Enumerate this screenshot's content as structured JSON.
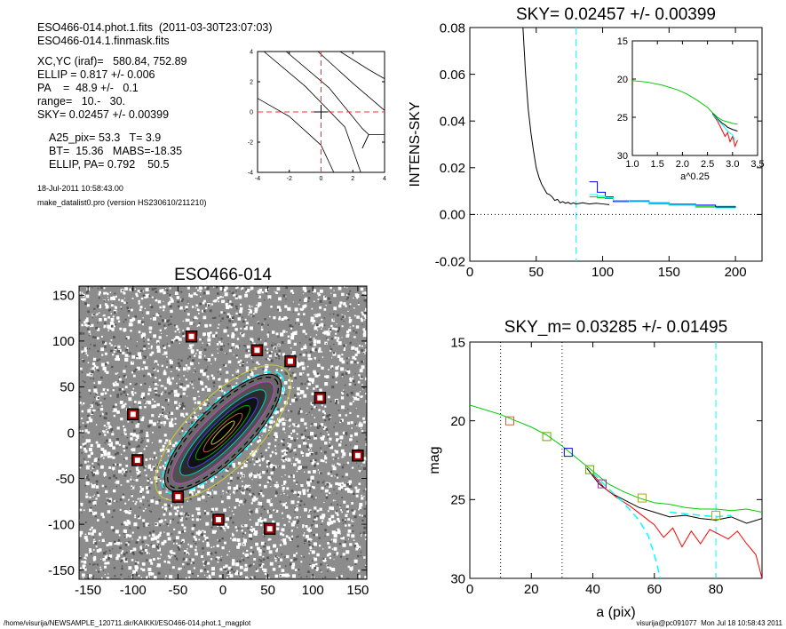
{
  "header": {
    "lines": [
      "ESO466-014.phot.1.fits  (2011-03-30T23:07:03)",
      "ESO466-014.1.finmask.fits",
      "XC,YC (iraf)=   580.84, 752.89",
      "ELLIP = 0.817 +/- 0.006",
      "PA    =  48.9 +/-   0.1",
      "range=   10.-   30.",
      "SKY= 0.02457 +/- 0.00399",
      "A25_pix= 53.3   T= 3.9",
      "BT=  15.36   MABS=-18.35",
      "ELLIP, PA= 0.792    50.5"
    ],
    "date_line": "18-Jul-2011 10:58:43.00",
    "program_line": "make_datalist0.pro (version HS230610/211210)"
  },
  "footer": {
    "path": "/home/visurija/NEWSAMPLE_120711.dir/KAIKKI/ESO466-014.phot.1_magplot",
    "user_stamp": "visurija@pc091077  Mon Jul 18 10:58:43 2011"
  },
  "chart_data": [
    {
      "id": "contour",
      "type": "line",
      "xlim": [
        -4,
        4
      ],
      "ylim": [
        -4,
        4
      ],
      "xticks": [
        "-4",
        "-2",
        "0",
        "2",
        "4"
      ],
      "yticks": [
        "-4",
        "-2",
        "0",
        "2",
        "4"
      ],
      "series": [
        {
          "x": [
            -4.0,
            -2.0,
            0.0,
            0.8
          ],
          "y": [
            0.9,
            -0.3,
            -2.2,
            -4.0
          ]
        },
        {
          "x": [
            -3.6,
            -1.0,
            1.5,
            2.5
          ],
          "y": [
            4.0,
            1.7,
            -1.0,
            -4.0
          ]
        },
        {
          "x": [
            -2.2,
            0.5,
            2.6,
            3.0,
            2.6
          ],
          "y": [
            4.0,
            1.6,
            -1.1,
            -1.5,
            -2.4
          ]
        },
        {
          "x": [
            2.6,
            3.0,
            4.0
          ],
          "y": [
            -2.4,
            -1.5,
            -1.5
          ]
        },
        {
          "x": [
            -0.2,
            2.0,
            4.0
          ],
          "y": [
            4.0,
            1.9,
            0.1
          ]
        },
        {
          "x": [
            1.2,
            3.0,
            4.0
          ],
          "y": [
            4.0,
            2.8,
            2.2
          ]
        }
      ],
      "markers": {
        "center": [
          0,
          0
        ],
        "crosshair": true
      }
    },
    {
      "id": "sky",
      "type": "line",
      "title": "SKY= 0.02457 +/- 0.00399",
      "xlabel": "",
      "ylabel": "INTENS-SKY",
      "xlim": [
        0,
        220
      ],
      "ylim": [
        -0.02,
        0.08
      ],
      "xticks": [
        0,
        50,
        100,
        150,
        200
      ],
      "yticks": [
        -0.02,
        0.0,
        0.02,
        0.04,
        0.06,
        0.08
      ],
      "ytick_labels": [
        "-0.02",
        "0.00",
        "0.02",
        "0.04",
        "0.06",
        "0.08"
      ],
      "vline_x": 80,
      "hline_y": 0.0,
      "series": [
        {
          "color": "#000000",
          "x": [
            40,
            42,
            44,
            46,
            48,
            50,
            52,
            54,
            56,
            58,
            60,
            62,
            64,
            66,
            68,
            70,
            72,
            74,
            76,
            78,
            80,
            85,
            90,
            95,
            100,
            105
          ],
          "y": [
            0.08,
            0.06,
            0.045,
            0.035,
            0.027,
            0.02,
            0.016,
            0.013,
            0.011,
            0.009,
            0.0085,
            0.0075,
            0.006,
            0.0065,
            0.005,
            0.0055,
            0.0048,
            0.0052,
            0.0045,
            0.005,
            0.0045,
            0.005,
            0.0045,
            0.0048,
            0.0045,
            0.0042
          ]
        },
        {
          "color": "#00cc00",
          "step": true,
          "x": [
            90,
            96,
            102,
            108,
            120,
            135,
            150,
            170,
            185,
            200
          ],
          "y": [
            0.0075,
            0.0072,
            0.0068,
            0.006,
            0.0055,
            0.0045,
            0.004,
            0.0035,
            0.0035,
            0.0035
          ]
        },
        {
          "color": "#0000ff",
          "step": true,
          "x": [
            90,
            96,
            102,
            108,
            120,
            135,
            150,
            170,
            185,
            200
          ],
          "y": [
            0.014,
            0.0095,
            0.0075,
            0.0055,
            0.0058,
            0.005,
            0.0044,
            0.004,
            0.0032,
            0.0035
          ]
        },
        {
          "color": "#00ffff",
          "step": true,
          "x": [
            90,
            96,
            102,
            108,
            120,
            135,
            150,
            170,
            185,
            200
          ],
          "y": [
            0.0085,
            0.0078,
            0.0072,
            0.006,
            0.0055,
            0.0048,
            0.004,
            0.003,
            0.0028,
            0.003
          ]
        }
      ],
      "inset": {
        "xlim": [
          1.0,
          3.5
        ],
        "ylim": [
          30,
          15
        ],
        "xticks": [
          1.0,
          1.5,
          2.0,
          2.5,
          3.0,
          3.5
        ],
        "xtick_labels": [
          "1.0",
          "1.5",
          "2.0",
          "2.5",
          "3.0",
          "3.5"
        ],
        "yticks": [
          15,
          20,
          25,
          30
        ],
        "xlabel": "a^0.25",
        "series": [
          {
            "color": "#00cc00",
            "x": [
              1.0,
              1.3,
              1.6,
              1.9,
              2.1,
              2.3,
              2.5,
              2.6,
              2.7,
              2.8,
              2.9,
              3.0,
              3.1
            ],
            "y": [
              20.2,
              20.4,
              20.8,
              21.4,
              22.0,
              22.8,
              23.7,
              24.4,
              25.0,
              25.4,
              25.6,
              25.8,
              25.9
            ]
          },
          {
            "color": "#000000",
            "x": [
              2.6,
              2.7,
              2.8,
              2.85,
              2.9,
              3.0,
              3.05,
              3.1
            ],
            "y": [
              24.5,
              25.2,
              25.8,
              26.0,
              26.3,
              26.6,
              26.7,
              26.8
            ]
          },
          {
            "color": "#ff0000",
            "x": [
              2.6,
              2.7,
              2.8,
              2.85,
              2.9,
              2.95,
              3.0,
              3.05,
              3.1
            ],
            "y": [
              24.6,
              25.5,
              26.8,
              27.5,
              27.0,
              28.2,
              27.5,
              28.8,
              28.0
            ]
          },
          {
            "color": "#00ffff",
            "x": [
              2.6,
              2.7,
              2.8,
              2.9,
              3.0,
              3.05
            ],
            "y": [
              24.6,
              25.3,
              26.0,
              26.8,
              27.3,
              28.0
            ]
          }
        ]
      }
    },
    {
      "id": "image",
      "type": "scatter",
      "title": "ESO466-014",
      "xlim": [
        -160,
        160
      ],
      "ylim": [
        -160,
        160
      ],
      "xticks": [
        -150,
        -100,
        -50,
        0,
        50,
        100,
        150
      ],
      "yticks": [
        -150,
        -100,
        -50,
        0,
        50,
        100,
        150
      ],
      "masked_stars": [
        [
          -35,
          105
        ],
        [
          38,
          90
        ],
        [
          -100,
          20
        ],
        [
          75,
          78
        ],
        [
          108,
          38
        ],
        [
          -95,
          -30
        ],
        [
          -50,
          -70
        ],
        [
          -5,
          -95
        ],
        [
          150,
          -25
        ],
        [
          52,
          -105
        ]
      ],
      "galaxy_center": [
        0,
        0
      ],
      "galaxy_pa_deg": 45,
      "ellip": 0.817
    },
    {
      "id": "mag",
      "type": "line",
      "title": "SKY_m=  0.03285 +/- 0.01495",
      "xlabel": "a (pix)",
      "ylabel": "mag",
      "xlim": [
        0,
        95
      ],
      "ylim": [
        30,
        15
      ],
      "xticks": [
        0,
        20,
        40,
        60,
        80
      ],
      "yticks": [
        15,
        20,
        25,
        30
      ],
      "vlines_dotted": [
        10,
        30
      ],
      "vline_dashed": 80,
      "squares": [
        {
          "x": 13,
          "y": 20.0,
          "color": "#cc6633"
        },
        {
          "x": 25,
          "y": 21.0,
          "color": "#66aa00"
        },
        {
          "x": 32,
          "y": 22.0,
          "color": "#0000ff"
        },
        {
          "x": 39,
          "y": 23.1,
          "color": "#66aa00"
        },
        {
          "x": 43,
          "y": 24.0,
          "color": "#8833aa"
        },
        {
          "x": 56,
          "y": 24.9,
          "color": "#aaaa00"
        },
        {
          "x": 80,
          "y": 26.0,
          "color": "#aaaa00"
        }
      ],
      "series": [
        {
          "color": "#00cc00",
          "x": [
            0,
            5,
            10,
            15,
            20,
            25,
            30,
            35,
            40,
            45,
            50,
            55,
            60,
            65,
            70,
            75,
            80,
            85,
            90,
            95
          ],
          "y": [
            19.0,
            19.3,
            19.6,
            20.0,
            20.4,
            20.9,
            21.6,
            22.4,
            23.2,
            24.0,
            24.5,
            24.9,
            25.2,
            25.3,
            25.5,
            25.6,
            25.6,
            25.7,
            25.6,
            25.8
          ]
        },
        {
          "color": "#000000",
          "x": [
            38,
            42,
            46,
            50,
            55,
            60,
            65,
            70,
            75,
            80,
            85,
            90,
            95
          ],
          "y": [
            23.0,
            24.0,
            24.6,
            25.0,
            25.5,
            25.8,
            26.1,
            26.0,
            26.2,
            26.3,
            26.1,
            26.5,
            26.2
          ]
        },
        {
          "color": "#ff0000",
          "x": [
            40,
            44,
            48,
            52,
            56,
            60,
            63,
            66,
            69,
            72,
            75,
            78,
            81,
            84,
            87,
            90,
            93,
            95
          ],
          "y": [
            23.4,
            24.3,
            24.9,
            25.4,
            26.0,
            26.6,
            27.4,
            26.8,
            28.0,
            27.0,
            27.8,
            26.9,
            27.2,
            27.5,
            27.0,
            27.8,
            28.5,
            30.0
          ]
        },
        {
          "color": "#00ffff",
          "dashed": true,
          "x": [
            40,
            45,
            50,
            55,
            58,
            60,
            62
          ],
          "y": [
            23.3,
            24.3,
            25.2,
            26.3,
            27.3,
            28.5,
            30.0
          ]
        },
        {
          "color": "#00ffff",
          "dashed": true,
          "x": [
            65,
            70,
            75,
            80,
            85
          ],
          "y": [
            25.8,
            25.9,
            26.0,
            26.1,
            26.0
          ]
        }
      ]
    }
  ]
}
